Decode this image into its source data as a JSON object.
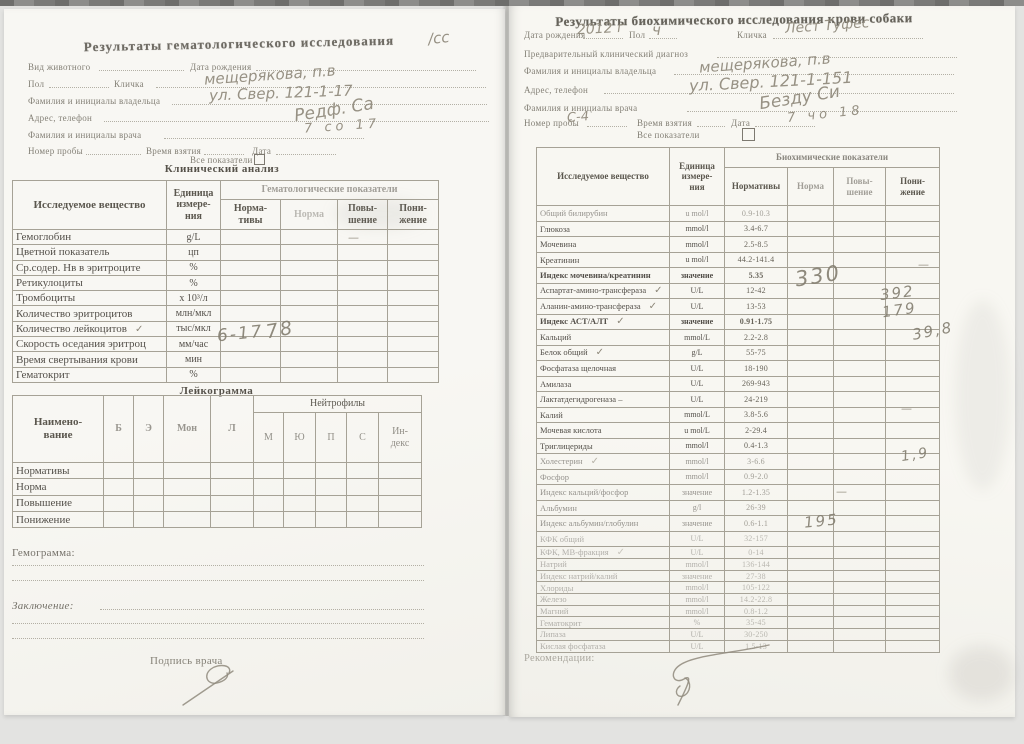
{
  "scan": {
    "left_page": {
      "title": "Результаты гематологического исследования",
      "title_note_hw": "/сс",
      "fields": {
        "species": "Вид животного",
        "birth_date": "Дата рождения",
        "sex": "Пол",
        "pet_name": "Кличка",
        "owner": "Фамилия и инициалы владельца",
        "address": "Адрес, телефон",
        "doctor": "Фамилия и инициалы врача",
        "sample_no": "Номер пробы",
        "sample_time": "Время взятия",
        "date": "Дата",
        "all_indicators": "Все показатели"
      },
      "handwriting": {
        "owner": "мещерякова, п.в",
        "address": "ул. Свер. 121-1-17",
        "doctor": "Редф. Са",
        "date": "7 со 17",
        "wbc_normative": "6-17",
        "wbc_value": "78",
        "dash": "—"
      },
      "clinical_heading": "Клинический анализ",
      "hema_table": {
        "col_substance": "Исследуемое вещество",
        "col_unit": "Единица\nизмере-\nния",
        "col_group": "Гематологические показатели",
        "col_sub": [
          "Норма-\nтивы",
          "Норма",
          "Повы-\nшение",
          "Пони-\nжение"
        ],
        "rows": [
          {
            "name": "Гемоглобин",
            "unit": "g/L"
          },
          {
            "name": "Цветной показатель",
            "unit": "цп"
          },
          {
            "name": "Ср.содер. Нв в эритроците",
            "unit": "%"
          },
          {
            "name": "Ретикулоциты",
            "unit": "%"
          },
          {
            "name": "Тромбоциты",
            "unit": "х 10³/л"
          },
          {
            "name": "Количество эритроцитов",
            "unit": "млн/мкл"
          },
          {
            "name": "Количество лейкоцитов",
            "unit": "тыс/мкл",
            "check": "✓"
          },
          {
            "name": "Скорость оседания эритроц",
            "unit": "мм/час"
          },
          {
            "name": "Время свертывания крови",
            "unit": "мин"
          },
          {
            "name": "Гематокрит",
            "unit": "%"
          }
        ]
      },
      "leukogram": {
        "heading": "Лейкограмма",
        "col_name": "Наимено-\nвание",
        "cols": [
          "Б",
          "Э",
          "Мон",
          "Л"
        ],
        "neutro_group": "Нейтрофилы",
        "neutro_cols": [
          "М",
          "Ю",
          "П",
          "С",
          "Ин-\nдекс"
        ],
        "row_labels": [
          "Нормативы",
          "Норма",
          "Повышение",
          "Понижение"
        ]
      },
      "hemogram_label": "Гемограмма:",
      "conclusion_label": "Заключение:",
      "signature_label": "Подпись врача"
    },
    "right_page": {
      "title": "Результаты биохимического исследования крови собаки",
      "fields": {
        "birth_date": "Дата рождения",
        "sex": "Пол",
        "pet_name": "Кличка",
        "diagnosis": "Предварительный клинический диагноз",
        "owner": "Фамилия и инициалы владельца",
        "address": "Адрес, телефон",
        "doctor": "Фамилия и инициалы врача",
        "sample_no": "Номер пробы",
        "sample_time": "Время взятия",
        "date": "Дата",
        "all_indicators": "Все показатели"
      },
      "handwriting": {
        "birth_date": "2012 г",
        "sex": "ч",
        "pet_name": "Лест Туфес",
        "owner": "мещерякова, п.в",
        "address": "ул. Свер. 121-1-151",
        "doctor": "Безду Си",
        "date": "7 чо 18",
        "sample_no": "С-4",
        "ast_value": "330",
        "alt_value": "392",
        "ast_alt_index": "179",
        "protein_value": "39,8",
        "cholesterol_value": "1,9",
        "kfk_value": "195",
        "dash": "—"
      },
      "bio_table": {
        "col_substance": "Исследуемое вещество",
        "col_unit": "Единица\nизмере-\nния",
        "col_group": "Биохимические показатели",
        "col_sub": [
          "Нормативы",
          "Норма",
          "Повы-\nшение",
          "Пони-\nжение"
        ],
        "rows": [
          {
            "name": "Общий билирубин",
            "unit": "u mol/l",
            "norm": "0.9-10.3",
            "fade": 1
          },
          {
            "name": "Глюкоза",
            "unit": "mmol/l",
            "norm": "3.4-6.7"
          },
          {
            "name": "Мочевина",
            "unit": "mmol/l",
            "norm": "2.5-8.5"
          },
          {
            "name": "Креатинин",
            "unit": "u mol/l",
            "norm": "44.2-141.4"
          },
          {
            "name": "Индекс мочевина/креатинин",
            "unit": "значение",
            "norm": "5.35",
            "bold": true
          },
          {
            "name": "Аспартат-амино-трансфераза",
            "unit": "U/L",
            "norm": "12-42",
            "check": "✓"
          },
          {
            "name": "Аланин-амино-трансфераза",
            "unit": "U/L",
            "norm": "13-53",
            "check": "✓"
          },
          {
            "name": "Индекс АСТ/АЛТ",
            "unit": "значение",
            "norm": "0.91-1.75",
            "bold": true,
            "check": "✓"
          },
          {
            "name": "Кальций",
            "unit": "mmol/L",
            "norm": "2.2-2.8"
          },
          {
            "name": "Белок общий",
            "unit": "g/L",
            "norm": "55-75",
            "check": "✓"
          },
          {
            "name": "Фосфатаза щелочная",
            "unit": "U/L",
            "norm": "18-190"
          },
          {
            "name": "Амилаза",
            "unit": "U/L",
            "norm": "269-943"
          },
          {
            "name": "Лактатдегидрогеназа –",
            "unit": "U/L",
            "norm": "24-219"
          },
          {
            "name": "Калий",
            "unit": "mmol/L",
            "norm": "3.8-5.6"
          },
          {
            "name": "Мочевая кислота",
            "unit": "u mol/L",
            "norm": "2-29.4"
          },
          {
            "name": "Триглицериды",
            "unit": "mmol/l",
            "norm": "0.4-1.3"
          },
          {
            "name": "Холестерин",
            "unit": "mmol/l",
            "norm": "3-6.6",
            "fade": 1,
            "check": "✓"
          },
          {
            "name": "Фосфор",
            "unit": "mmol/l",
            "norm": "0.9-2.0",
            "fade": 1
          },
          {
            "name": "Индекс кальций/фосфор",
            "unit": "значение",
            "norm": "1.2-1.35",
            "fade": 1
          },
          {
            "name": "Альбумин",
            "unit": "g/l",
            "norm": "26-39",
            "fade": 1
          },
          {
            "name": "Индекс альбумин/глобулин",
            "unit": "значение",
            "norm": "0.6-1.1",
            "fade": 1
          },
          {
            "name": "КФК общий",
            "unit": "U/L",
            "norm": "32-157",
            "fade": 2
          },
          {
            "name": "КФК, МВ-фракция",
            "unit": "U/L",
            "norm": "0-14",
            "fade": 2,
            "check": "✓"
          },
          {
            "name": "Натрий",
            "unit": "mmol/l",
            "norm": "136-144",
            "fade": 2
          },
          {
            "name": "Индекс натрий/калий",
            "unit": "значение",
            "norm": "27-38",
            "fade": 2
          },
          {
            "name": "Хлориды",
            "unit": "mmol/l",
            "norm": "105-122",
            "fade": 2
          },
          {
            "name": "Железо",
            "unit": "mmol/l",
            "norm": "14.2-22.8",
            "fade": 2
          },
          {
            "name": "Магний",
            "unit": "mmol/l",
            "norm": "0.8-1.2",
            "fade": 2
          },
          {
            "name": "Гематокрит",
            "unit": "%",
            "norm": "35-45",
            "fade": 2
          },
          {
            "name": "Липаза",
            "unit": "U/L",
            "norm": "30-250",
            "fade": 2
          },
          {
            "name": "Кислая фосфатаза",
            "unit": "U/L",
            "norm": "1.5-13",
            "fade": 2
          }
        ]
      },
      "recommendations_label": "Рекомендации:"
    }
  }
}
